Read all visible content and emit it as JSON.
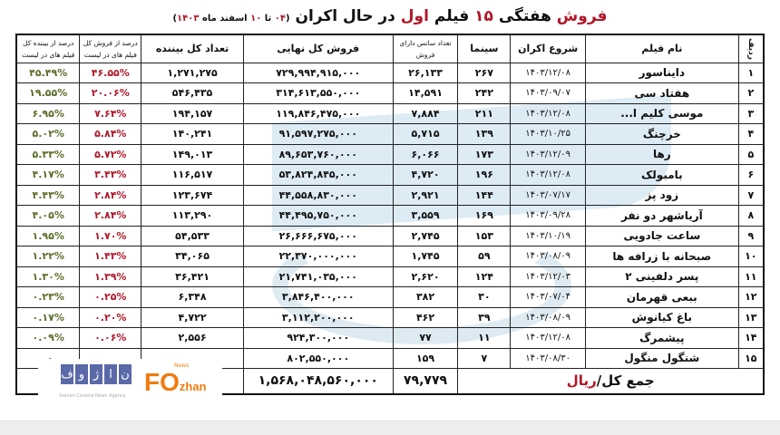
{
  "title": {
    "p1": "فروش",
    "p2": " هفتگی ",
    "p3": "۱۵",
    "p4": " فیلم ",
    "p5": "اول",
    "p6": " در حال اکران ",
    "sub_open": "(",
    "sub_a": "۰۴",
    "sub_to": " تا ",
    "sub_b": "۱۰",
    "sub_rest": " اسفند ماه ",
    "sub_year": "۱۴۰۳",
    "sub_close": ")"
  },
  "headers": {
    "rank": "ردیف",
    "name": "نام فیلم",
    "start": "شروع اکران",
    "cinemas": "سینما",
    "sessions": "تعداد سانس دارای فروش",
    "sales": "فروش کل نهایی",
    "viewers": "تعداد کل بیننده",
    "sales_pct": "درصد از فروش کل فیلم های در لیست",
    "viewers_pct": "درصد از بیننده کل فیلم های در لیست"
  },
  "rows": [
    {
      "rank": "۱",
      "name": "دایناسور",
      "start": "۱۴۰۳/۱۲/۰۸",
      "cinemas": "۲۶۷",
      "sessions": "۲۶,۱۳۳",
      "sales": "۷۲۹,۹۹۴,۹۱۵,۰۰۰",
      "viewers": "۱,۲۷۱,۲۷۵",
      "sales_pct": "۴۶.۵۵%",
      "viewers_pct": "۴۵.۴۹%"
    },
    {
      "rank": "۲",
      "name": "هفتاد سی",
      "start": "۱۴۰۳/۰۹/۰۷",
      "cinemas": "۲۴۲",
      "sessions": "۱۴,۵۹۱",
      "sales": "۳۱۴,۶۱۳,۵۵۰,۰۰۰",
      "viewers": "۵۴۶,۴۳۵",
      "sales_pct": "۲۰.۰۶%",
      "viewers_pct": "۱۹.۵۵%"
    },
    {
      "rank": "۳",
      "name": "موسی کلیم ا...",
      "start": "۱۴۰۳/۱۲/۰۸",
      "cinemas": "۲۱۱",
      "sessions": "۷,۸۸۴",
      "sales": "۱۱۹,۸۴۶,۴۷۵,۰۰۰",
      "viewers": "۱۹۴,۱۵۷",
      "sales_pct": "۷.۶۴%",
      "viewers_pct": "۶.۹۵%"
    },
    {
      "rank": "۴",
      "name": "خرچنگ",
      "start": "۱۴۰۳/۱۰/۲۵",
      "cinemas": "۱۳۹",
      "sessions": "۵,۷۱۵",
      "sales": "۹۱,۵۹۷,۲۷۵,۰۰۰",
      "viewers": "۱۴۰,۲۴۱",
      "sales_pct": "۵.۸۴%",
      "viewers_pct": "۵.۰۲%"
    },
    {
      "rank": "۵",
      "name": "رها",
      "start": "۱۴۰۳/۱۲/۰۹",
      "cinemas": "۱۷۳",
      "sessions": "۶,۰۶۶",
      "sales": "۸۹,۶۵۳,۷۶۰,۰۰۰",
      "viewers": "۱۴۹,۰۱۳",
      "sales_pct": "۵.۷۲%",
      "viewers_pct": "۵.۳۳%"
    },
    {
      "rank": "۶",
      "name": "بامبولک",
      "start": "۱۴۰۳/۱۲/۰۸",
      "cinemas": "۱۹۶",
      "sessions": "۴,۷۲۰",
      "sales": "۵۳,۸۲۴,۸۴۵,۰۰۰",
      "viewers": "۱۱۶,۵۱۷",
      "sales_pct": "۳.۴۳%",
      "viewers_pct": "۴.۱۷%"
    },
    {
      "rank": "۷",
      "name": "زود پز",
      "start": "۱۴۰۳/۰۷/۱۷",
      "cinemas": "۱۴۴",
      "sessions": "۲,۹۲۱",
      "sales": "۴۴,۵۵۸,۸۳۰,۰۰۰",
      "viewers": "۱۲۳,۶۷۴",
      "sales_pct": "۲.۸۴%",
      "viewers_pct": "۴.۴۳%"
    },
    {
      "rank": "۸",
      "name": "آریاشهر دو نفر",
      "start": "۱۴۰۳/۰۹/۲۸",
      "cinemas": "۱۶۹",
      "sessions": "۳,۵۵۹",
      "sales": "۴۴,۴۹۵,۷۵۰,۰۰۰",
      "viewers": "۱۱۳,۲۹۰",
      "sales_pct": "۲.۸۴%",
      "viewers_pct": "۴.۰۵%"
    },
    {
      "rank": "۹",
      "name": "ساعت جادویی",
      "start": "۱۴۰۳/۱۰/۱۹",
      "cinemas": "۱۵۳",
      "sessions": "۲,۷۴۵",
      "sales": "۲۶,۶۶۶,۶۷۵,۰۰۰",
      "viewers": "۵۴,۵۳۳",
      "sales_pct": "۱.۷۰%",
      "viewers_pct": "۱.۹۵%"
    },
    {
      "rank": "۱۰",
      "name": "صبحانه با زرافه ها",
      "start": "۱۴۰۳/۰۸/۰۹",
      "cinemas": "۵۹",
      "sessions": "۱,۷۴۵",
      "sales": "۲۲,۳۷۰,۰۰۰,۰۰۰",
      "viewers": "۳۴,۰۶۵",
      "sales_pct": "۱.۴۳%",
      "viewers_pct": "۱.۲۲%"
    },
    {
      "rank": "۱۱",
      "name": "پسر دلفینی ۲",
      "start": "۱۴۰۳/۱۲/۰۳",
      "cinemas": "۱۲۴",
      "sessions": "۲,۶۲۰",
      "sales": "۲۱,۷۴۱,۰۳۵,۰۰۰",
      "viewers": "۳۶,۴۲۱",
      "sales_pct": "۱.۳۹%",
      "viewers_pct": "۱.۳۰%"
    },
    {
      "rank": "۱۲",
      "name": "ببعی قهرمان",
      "start": "۱۴۰۳/۰۷/۰۴",
      "cinemas": "۳۰",
      "sessions": "۳۸۲",
      "sales": "۳,۸۴۶,۴۰۰,۰۰۰",
      "viewers": "۶,۳۴۸",
      "sales_pct": "۰.۲۵%",
      "viewers_pct": "۰.۲۳%"
    },
    {
      "rank": "۱۳",
      "name": "باغ کیانوش",
      "start": "۱۴۰۳/۰۸/۰۹",
      "cinemas": "۳۹",
      "sessions": "۴۶۲",
      "sales": "۳,۱۱۲,۲۰۰,۰۰۰",
      "viewers": "۴,۷۲۲",
      "sales_pct": "۰.۲۰%",
      "viewers_pct": "۰.۱۷%"
    },
    {
      "rank": "۱۴",
      "name": "پیشمرگ",
      "start": "۱۴۰۳/۱۲/۰۸",
      "cinemas": "۱۱",
      "sessions": "۷۷",
      "sales": "۹۲۴,۳۰۰,۰۰۰",
      "viewers": "۲,۵۵۶",
      "sales_pct": "۰.۰۶%",
      "viewers_pct": "۰.۰۹%"
    },
    {
      "rank": "۱۵",
      "name": "شنگول منگول",
      "start": "۱۴۰۳/۰۸/۳۰",
      "cinemas": "۷",
      "sessions": "۱۵۹",
      "sales": "۸۰۲,۵۵۰,۰۰۰",
      "viewers": "",
      "sales_pct": "",
      "viewers_pct": "۰."
    }
  ],
  "total": {
    "label": "جمع کل/",
    "unit": "ریال",
    "sessions": "۷۹,۷۷۹",
    "sales": "۱,۵۶۸,۰۴۸,۵۶۰,۰۰۰",
    "viewers_pct": "۱"
  },
  "logos": {
    "fouzhan": "فوژان",
    "fouzhan_sub": "Iranian Cinema News Agency",
    "fozhan": "FOzhan",
    "news": "News"
  },
  "colors": {
    "title_red": "#b0182a",
    "viewers_pct": "#5b6e2a",
    "sales_pct": "#b0182a",
    "watermark": "#cfe3f0"
  }
}
